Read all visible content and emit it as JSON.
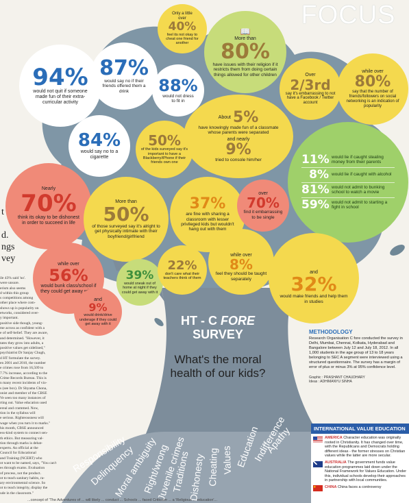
{
  "header": {
    "title": "FOCUS"
  },
  "left_column": {
    "fragments": [
      "t",
      "d.",
      "ngs",
      "vey"
    ],
    "body": [
      "ile 43% said 'no'.",
      "were unsure.",
      "erism also seems",
      "d within this group",
      "s competitions among",
      "other place where com-",
      "shows up is popularity on",
      "etworks, considered over-",
      "y important.",
      "positive side though, young-",
      "me across as confident with a",
      "e of self-belief. They are aware,",
      "and determined. \"However, it",
      "tates they grow into adults, a",
      "positive values get sidelined,\"",
      "psychiatrist Dr Sanjay Chugh,",
      "d HT formulate the survey.",
      "en 2001 and 2010, the number",
      "e crimes rose from 16,509 to",
      "7.7% increase, according to the",
      "Crime Records Bureau. This is",
      "n many recent incidents of vio-",
      "s (see box). Dr Shyama Chona,",
      "onist and member of the CBSE",
      "Ve seen too many instances of",
      "rting out. Value education used",
      "ereal and crammed. Now,",
      "tion in the syllabus will",
      "e serious. Righteousness will",
      "wage when you turn it to marks.\"",
      "his month, CBSE announced",
      "ess-kind system to connect sen-",
      "th ethics. But measuring val-",
      "tion through marks is debat-",
      "experts. An official at the",
      "Council for Educational",
      "and Training (NCERT) who",
      "ot want to be named, says, \"You can't",
      "es through exams. Evaluation",
      "of process, not the product.",
      "ot to teach sanitary habits, ra-",
      "ary environmental science. So",
      "ot to teach integrity, display the",
      "ude in the classroom.\""
    ]
  },
  "bubbles": {
    "b40": {
      "prefix": "Only a little over",
      "value": "40%",
      "caption": "feel its not okay to cheat one friend for another"
    },
    "b80a": {
      "prefix": "More than",
      "value": "80%",
      "caption": "have issues with their religion if it restricts them from doing certain things allowed for other children"
    },
    "b94": {
      "value": "94%",
      "caption": "would not quit if someone made fun of their extra-curricular activity"
    },
    "b87": {
      "value": "87%",
      "caption": "would say no if their friends offered them a drink"
    },
    "b88": {
      "value": "88%",
      "caption": "would not dress to fit in"
    },
    "b23": {
      "prefix": "Over",
      "value": "2/3rd",
      "caption": "say it's embarrassing to not have a Facebook / Twitter account"
    },
    "b80b": {
      "prefix": "while over",
      "value": "80%",
      "caption": "say that the number of friends/followers on social networking is an indication of popularity"
    },
    "b84": {
      "value": "84%",
      "caption": "would say no to a cigarette"
    },
    "b5": {
      "prefix": "About",
      "value": "5%",
      "caption": "have knowingly made fun of a classmate whose parents were separated",
      "prefix2": "and nearly",
      "value2": "9%",
      "caption2": "tried to console him/her"
    },
    "b50a": {
      "value": "50%",
      "caption": "of the kids surveyed say it's important to have a Blackberry/iPhone if their friends own one"
    },
    "green_box": {
      "rows": [
        {
          "value": "11%",
          "caption": "would lie if caught stealing money from their parents"
        },
        {
          "value": "8%",
          "caption": "would lie if caught with alcohol"
        },
        {
          "value": "81%",
          "caption": "would not admit to bunking school to watch a movie"
        },
        {
          "value": "59%",
          "caption": "would not admit to starting a fight in school"
        }
      ]
    },
    "b70a": {
      "prefix": "Nearly",
      "value": "70%",
      "caption": "think its okay to be dishonest in order to succeed in life"
    },
    "b50b": {
      "prefix": "More than",
      "value": "50%",
      "caption": "of those surveyed say it's alright to get physically intimate with their boyfriend/girlfriend"
    },
    "b37": {
      "value": "37%",
      "caption": "are fine with sharing a classroom with lesser privileged kids but wouldn't hang out with them"
    },
    "b70b": {
      "prefix": "over",
      "value": "70%",
      "caption": "find it embarrassing to be single"
    },
    "b56": {
      "prefix": "while over",
      "value": "56%",
      "caption": "would bunk class/school if they could get away with it"
    },
    "b9": {
      "prefix": "and",
      "value": "9%",
      "caption": "would drink/drive underage if they could get away with it"
    },
    "b39": {
      "value": "39%",
      "caption": "would sneak out of home at night if they could get away with it"
    },
    "b22": {
      "value": "22%",
      "caption": "don't care what their teachers think of them"
    },
    "b8": {
      "prefix": "while over",
      "value": "8%",
      "caption": "feel they should be taught separately"
    },
    "b32": {
      "prefix": "and",
      "value": "32%",
      "caption": "would make friends and help them in studies"
    }
  },
  "trunk": {
    "brand_a": "HT - C ",
    "brand_b": "FORE",
    "brand_c": "SURVEY",
    "question": "What's the moral health of our kids?"
  },
  "methodology": {
    "heading": "METHODOLOGY",
    "text": "Research Organisation C fore conducted the survey in Delhi, Mumbai, Chennai, Kolkata, Hyderabad and Bangalore between July 12 and July 18, 2012. In all 1,000 students in the age group of 13 to 18 years belonging to SEC A segment were interviewed using a structured questionnaire. The survey has a margin of error of plus or minus 3% at 95% confidence level.",
    "credit1": "Graphic : PRASHANT CHAUDHARY",
    "credit2": "Ideas : ADHIMANYU SINHA"
  },
  "roots": [
    "Responsibility",
    "Delinquency",
    "Moral ambiguity",
    "Right/wrong",
    "Juvenile crimes",
    "Traditions",
    "Dishonesty",
    "Cheating",
    "Values",
    "Education",
    "Indifference",
    "Apathy"
  ],
  "value_education": {
    "heading": "INTERNATIONAL VALUE EDUCATION",
    "items": [
      {
        "country": "AMERICA",
        "text": "Character education was originally rooted in Christianity. It has changed over time, with the Republicans and Democrats holding different ideas - the former stresses on Christian values while the latter are more secular."
      },
      {
        "country": "AUSTRALIA",
        "text": "The government funds value education programmes laid down under the National Framework for Values Education. Under this, individual schools develop their approaches in partnership with local communities."
      },
      {
        "country": "CHINA",
        "text": "China faces a controversy"
      }
    ]
  },
  "bottom_strip": "...concept of 'The Adventures of ... will likely ... conduct ... Schools ... faced Criticism ... a 'Religious ... education'..."
}
